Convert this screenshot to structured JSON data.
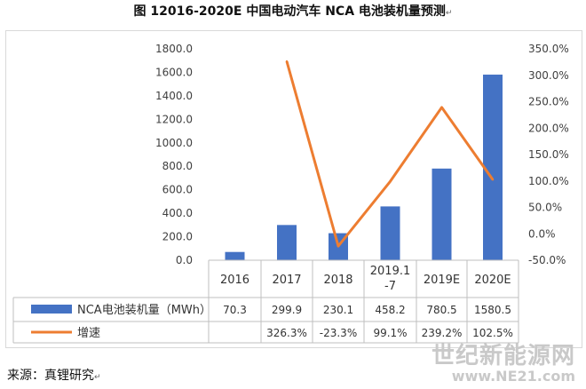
{
  "header": {
    "title": "图  12016-2020E  中国电动汽车 NCA 电池装机量预测",
    "title_end_mark": "↵"
  },
  "chart_data": {
    "type": "bar",
    "categories": [
      "2016",
      "2017",
      "2018",
      "2019.1\n-7",
      "2019E",
      "2020E"
    ],
    "series": [
      {
        "name": "NCA电池装机量（MWh）",
        "kind": "bar",
        "axis": "left",
        "color": "#4472c4",
        "values": [
          70.3,
          299.9,
          230.1,
          458.2,
          780.5,
          1580.5
        ],
        "labels": [
          "70.3",
          "299.9",
          "230.1",
          "458.2",
          "780.5",
          "1580.5"
        ]
      },
      {
        "name": "增速",
        "kind": "line",
        "axis": "right",
        "color": "#ed7d31",
        "values": [
          null,
          326.3,
          -23.3,
          99.1,
          239.2,
          102.5
        ],
        "labels": [
          "",
          "326.3%",
          "-23.3%",
          "99.1%",
          "239.2%",
          "102.5%"
        ]
      }
    ],
    "y_left": {
      "ylim": [
        0,
        1800
      ],
      "ticks": [
        "0.0",
        "200.0",
        "400.0",
        "600.0",
        "800.0",
        "1000.0",
        "1200.0",
        "1400.0",
        "1600.0",
        "1800.0"
      ]
    },
    "y_right": {
      "ylim": [
        -50,
        350
      ],
      "ticks": [
        "-50.0%",
        "0.0%",
        "50.0%",
        "100.0%",
        "150.0%",
        "200.0%",
        "250.0%",
        "300.0%",
        "350.0%"
      ]
    },
    "grid": false,
    "legend": "data-table"
  },
  "footer": {
    "source": "来源：真锂研究",
    "source_end_mark": "↵",
    "watermark_cn": "世纪新能源网",
    "watermark_url": "www.NE21.com"
  }
}
